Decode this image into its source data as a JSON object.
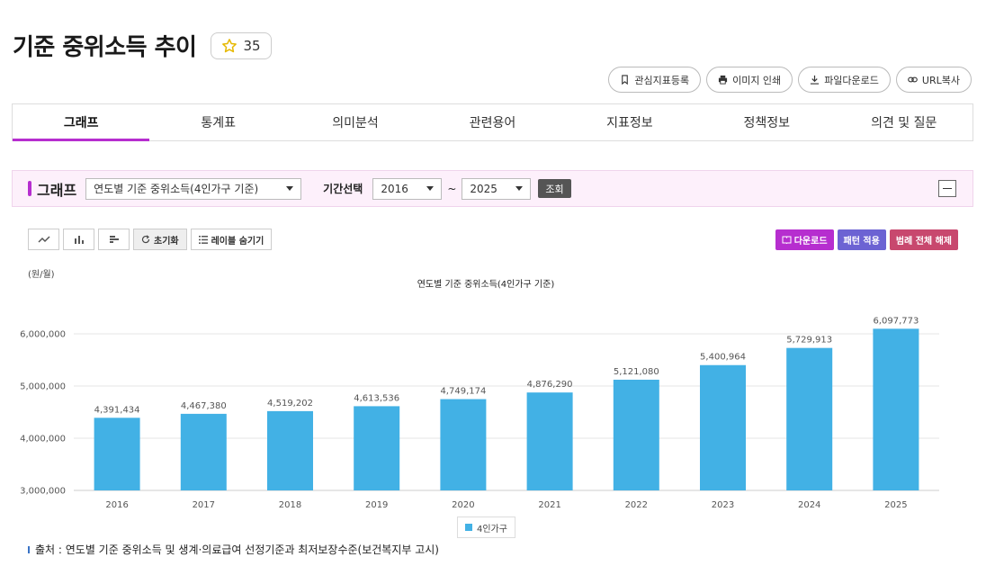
{
  "page": {
    "title": "기준 중위소득 추이",
    "favorite_count": "35"
  },
  "actions": [
    {
      "label": "관심지표등록",
      "icon": "bookmark-icon"
    },
    {
      "label": "이미지 인쇄",
      "icon": "print-icon"
    },
    {
      "label": "파일다운로드",
      "icon": "download-icon"
    },
    {
      "label": "URL복사",
      "icon": "link-icon"
    }
  ],
  "tabs": [
    "그래프",
    "통계표",
    "의미분석",
    "관련용어",
    "지표정보",
    "정책정보",
    "의견 및 질문"
  ],
  "graph_panel": {
    "title": "그래프",
    "series_select": "연도별 기준 중위소득(4인가구 기준)",
    "period_label": "기간선택",
    "from_year": "2016",
    "tilde": "~",
    "to_year": "2025",
    "query_label": "조회"
  },
  "toolbar": {
    "reset_label": "초기화",
    "hide_labels_label": "레이블 숨기기"
  },
  "right_buttons": [
    {
      "label": "다운로드",
      "color": "#b62ecf"
    },
    {
      "label": "패턴 적용",
      "color": "#6c63d3"
    },
    {
      "label": "범례 전체 해제",
      "color": "#c8486e"
    }
  ],
  "unit_label": "(원/월)",
  "chart_data": {
    "type": "bar",
    "title": "연도별 기준 중위소득(4인가구 기준)",
    "categories": [
      "2016",
      "2017",
      "2018",
      "2019",
      "2020",
      "2021",
      "2022",
      "2023",
      "2024",
      "2025"
    ],
    "series": [
      {
        "name": "4인가구",
        "color": "#42b1e5",
        "values": [
          4391434,
          4467380,
          4519202,
          4613536,
          4749174,
          4876290,
          5121080,
          5400964,
          5729913,
          6097773
        ]
      }
    ],
    "ylim": [
      3000000,
      6000000
    ],
    "yticks": [
      3000000,
      4000000,
      5000000,
      6000000
    ],
    "grid": true,
    "legend": "bottom-center"
  },
  "source": "출처 : 연도별 기준 중위소득 및 생계·의료급여 선정기준과 최저보장수준(보건복지부 고시)"
}
